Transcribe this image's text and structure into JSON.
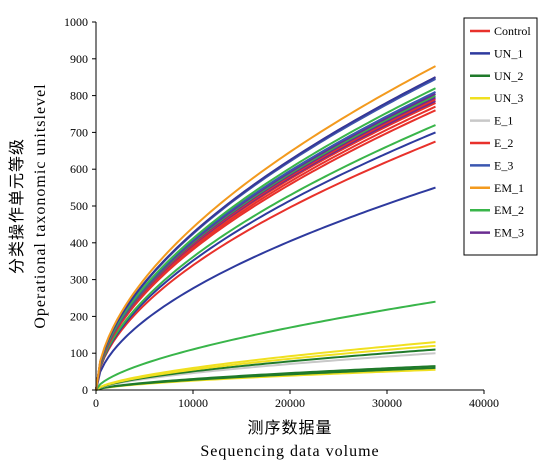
{
  "chart_data": {
    "type": "line",
    "xlabel_cn": "测序数据量",
    "xlabel_en": "Sequencing data volume",
    "ylabel_cn": "分类操作单元等级",
    "ylabel_en": "Operational taxonomic unitslevel",
    "xlim": [
      0,
      40000
    ],
    "ylim": [
      0,
      1000
    ],
    "x_ticks": [
      "0",
      "10000",
      "20000",
      "30000",
      "40000"
    ],
    "y_ticks": [
      "0",
      "100",
      "200",
      "300",
      "400",
      "500",
      "600",
      "700",
      "800",
      "900",
      "1000"
    ],
    "grid": false,
    "legend_position": "top-right",
    "x_end": 35000,
    "series": [
      {
        "name": "Control",
        "color": "#e8312b",
        "end_values": [
          850,
          770,
          760,
          675
        ]
      },
      {
        "name": "UN_1",
        "color": "#2e3a9e",
        "end_values": [
          850,
          700,
          550
        ]
      },
      {
        "name": "UN_2",
        "color": "#1f7a2a",
        "end_values": [
          110,
          65,
          60
        ]
      },
      {
        "name": "UN_3",
        "color": "#f0e020",
        "end_values": [
          130,
          120,
          55
        ]
      },
      {
        "name": "E_1",
        "color": "#c8c8c8",
        "end_values": [
          100
        ]
      },
      {
        "name": "E_2",
        "color": "#e8312b",
        "end_values": [
          790,
          780
        ]
      },
      {
        "name": "E_3",
        "color": "#3a56b0",
        "end_values": [
          845,
          810
        ]
      },
      {
        "name": "EM_1",
        "color": "#f39a1e",
        "end_values": [
          880
        ]
      },
      {
        "name": "EM_2",
        "color": "#39b54a",
        "end_values": [
          820,
          800,
          720,
          240
        ]
      },
      {
        "name": "EM_3",
        "color": "#6a2c91",
        "end_values": [
          805,
          795,
          785
        ]
      }
    ]
  }
}
